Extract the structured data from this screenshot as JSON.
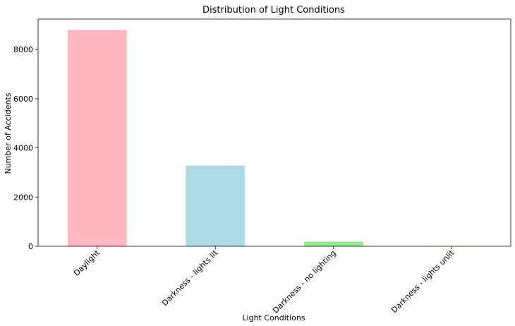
{
  "chart_data": {
    "type": "bar",
    "title": "Distribution of Light Conditions",
    "xlabel": "Light Conditions",
    "ylabel": "Number of Accidents",
    "categories": [
      "Daylight",
      "Darkness - lights lit",
      "Darkness - no lighting",
      "Darkness - lights unlit"
    ],
    "values": [
      8800,
      3280,
      190,
      20
    ],
    "colors": [
      "#ffb6c1",
      "#add8e6",
      "#90ee90",
      "#ffffe0"
    ],
    "ylim": [
      0,
      9240
    ],
    "yticks": [
      0,
      2000,
      4000,
      6000,
      8000
    ],
    "ytick_labels": [
      "0",
      "2000",
      "4000",
      "6000",
      "8000"
    ],
    "x_tick_rotation": 45,
    "grid": false,
    "legend": false
  }
}
